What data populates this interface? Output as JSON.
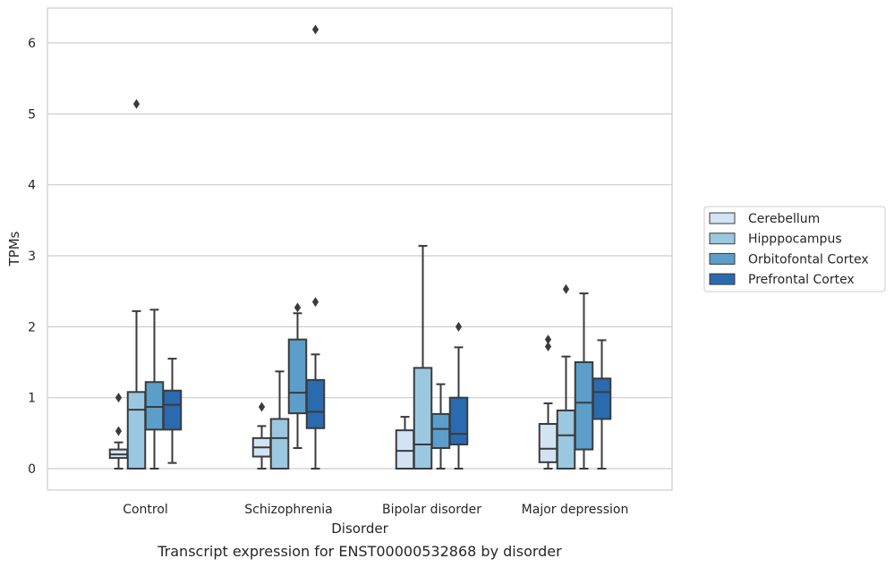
{
  "chart_data": {
    "type": "boxplot",
    "caption": "Transcript expression for ENST00000532868 by disorder",
    "xlabel": "Disorder",
    "ylabel": "TPMs",
    "ylim": [
      -0.3,
      6.5
    ],
    "yticks": [
      0,
      1,
      2,
      3,
      4,
      5,
      6
    ],
    "grid": true,
    "legend_position": "right",
    "categories": [
      "Control",
      "Schizophrenia",
      "Bipolar disorder",
      "Major depression"
    ],
    "series": [
      {
        "name": "Cerebellum",
        "color": "#d2e3f3",
        "boxes": [
          {
            "whisker_low": 0.0,
            "q1": 0.15,
            "median": 0.2,
            "q3": 0.27,
            "whisker_high": 0.37,
            "outliers": [
              0.53,
              1.0
            ]
          },
          {
            "whisker_low": 0.0,
            "q1": 0.17,
            "median": 0.3,
            "q3": 0.43,
            "whisker_high": 0.6,
            "outliers": [
              0.87
            ]
          },
          {
            "whisker_low": 0.0,
            "q1": 0.0,
            "median": 0.25,
            "q3": 0.54,
            "whisker_high": 0.73,
            "outliers": []
          },
          {
            "whisker_low": 0.0,
            "q1": 0.09,
            "median": 0.28,
            "q3": 0.63,
            "whisker_high": 0.92,
            "outliers": [
              1.72,
              1.82
            ]
          }
        ]
      },
      {
        "name": "Hipppocampus",
        "color": "#9ac8e0",
        "boxes": [
          {
            "whisker_low": 0.0,
            "q1": 0.0,
            "median": 0.83,
            "q3": 1.08,
            "whisker_high": 2.22,
            "outliers": [
              5.14
            ]
          },
          {
            "whisker_low": 0.0,
            "q1": 0.0,
            "median": 0.43,
            "q3": 0.7,
            "whisker_high": 1.37,
            "outliers": []
          },
          {
            "whisker_low": 0.0,
            "q1": 0.0,
            "median": 0.34,
            "q3": 1.42,
            "whisker_high": 3.14,
            "outliers": []
          },
          {
            "whisker_low": 0.0,
            "q1": 0.0,
            "median": 0.47,
            "q3": 0.82,
            "whisker_high": 1.58,
            "outliers": [
              2.53
            ]
          }
        ]
      },
      {
        "name": "Orbitofontal Cortex",
        "color": "#5a9ec9",
        "boxes": [
          {
            "whisker_low": 0.0,
            "q1": 0.55,
            "median": 0.87,
            "q3": 1.22,
            "whisker_high": 2.24,
            "outliers": []
          },
          {
            "whisker_low": 0.29,
            "q1": 0.78,
            "median": 1.07,
            "q3": 1.82,
            "whisker_high": 2.19,
            "outliers": [
              2.27
            ]
          },
          {
            "whisker_low": 0.0,
            "q1": 0.29,
            "median": 0.56,
            "q3": 0.77,
            "whisker_high": 1.19,
            "outliers": []
          },
          {
            "whisker_low": 0.0,
            "q1": 0.27,
            "median": 0.93,
            "q3": 1.5,
            "whisker_high": 2.47,
            "outliers": []
          }
        ]
      },
      {
        "name": "Prefrontal Cortex",
        "color": "#2a6aae",
        "boxes": [
          {
            "whisker_low": 0.08,
            "q1": 0.55,
            "median": 0.9,
            "q3": 1.1,
            "whisker_high": 1.55,
            "outliers": []
          },
          {
            "whisker_low": 0.0,
            "q1": 0.57,
            "median": 0.8,
            "q3": 1.25,
            "whisker_high": 1.61,
            "outliers": [
              2.35,
              6.19
            ]
          },
          {
            "whisker_low": 0.0,
            "q1": 0.34,
            "median": 0.49,
            "q3": 1.0,
            "whisker_high": 1.71,
            "outliers": [
              2.0
            ]
          },
          {
            "whisker_low": 0.0,
            "q1": 0.7,
            "median": 1.08,
            "q3": 1.27,
            "whisker_high": 1.81,
            "outliers": []
          }
        ]
      }
    ]
  }
}
